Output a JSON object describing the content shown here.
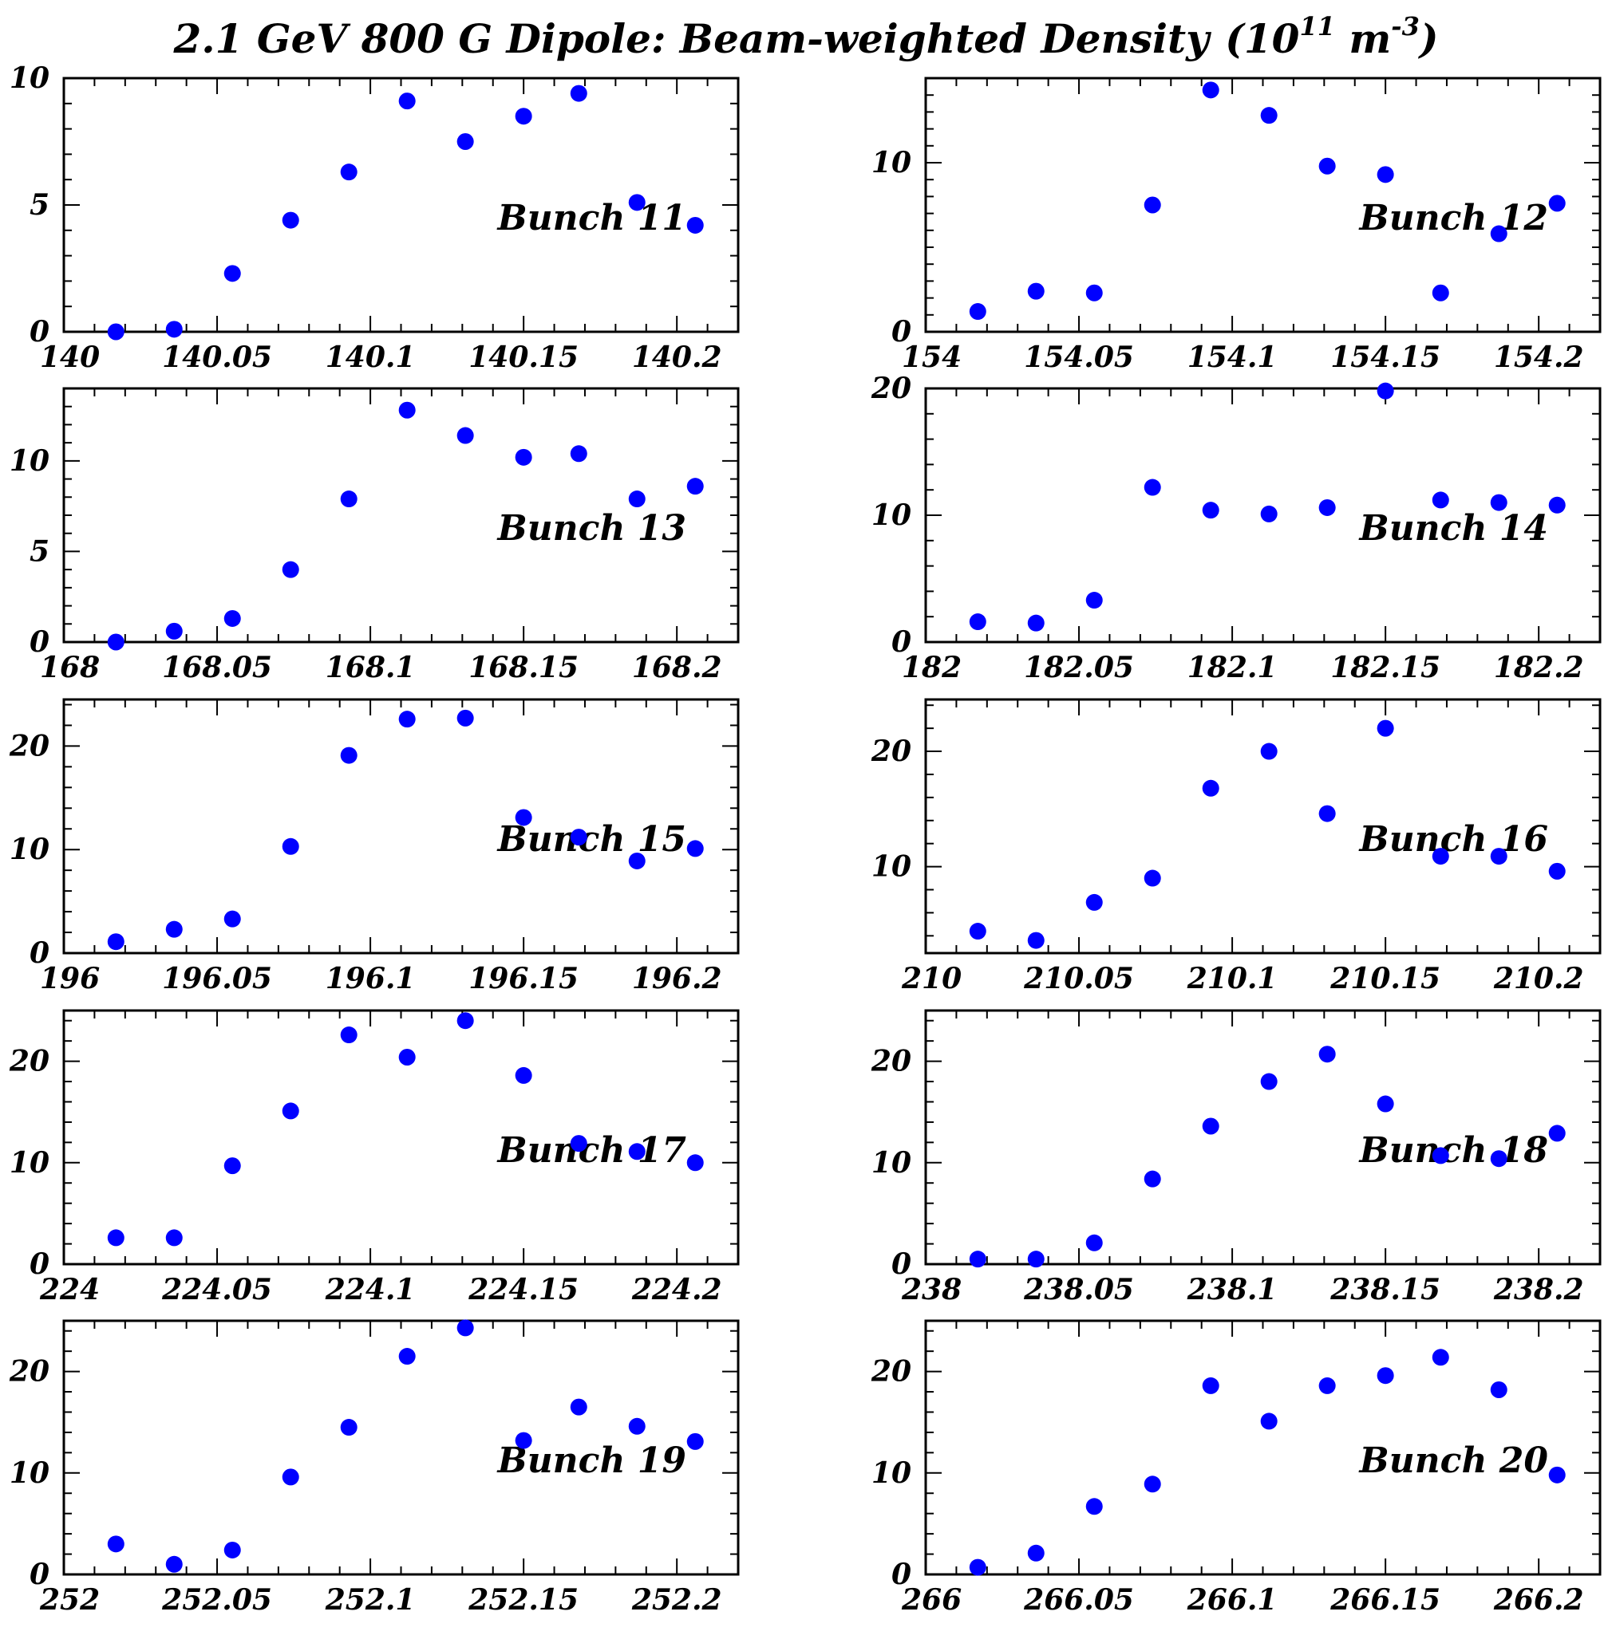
{
  "title": {
    "main": "2.1 GeV 800 G Dipole: Beam-weighted Density",
    "unit_open": "(10",
    "unit_exp1": "11",
    "unit_mid": " m",
    "unit_exp2": "-3",
    "unit_close": ")"
  },
  "colors": {
    "points": "#0000ff",
    "frame": "#000000",
    "background": "#ffffff"
  },
  "chart_data": [
    {
      "type": "scatter",
      "label": "Bunch 11",
      "xlim": [
        140,
        140.22
      ],
      "ylim": [
        0,
        10
      ],
      "xticks": [
        "140",
        "140.05",
        "140.1",
        "140.15",
        "140.2"
      ],
      "yticks": [
        "0",
        "5",
        "10"
      ],
      "x": [
        140.017,
        140.036,
        140.055,
        140.074,
        140.093,
        140.112,
        140.131,
        140.15,
        140.168,
        140.187,
        140.206
      ],
      "y": [
        0.0,
        0.1,
        2.3,
        4.4,
        6.3,
        9.1,
        7.5,
        8.5,
        9.4,
        5.1,
        4.2
      ]
    },
    {
      "type": "scatter",
      "label": "Bunch 12",
      "xlim": [
        154,
        154.22
      ],
      "ylim": [
        0,
        15
      ],
      "xticks": [
        "154",
        "154.05",
        "154.1",
        "154.15",
        "154.2"
      ],
      "yticks": [
        "0",
        "10"
      ],
      "x": [
        154.017,
        154.036,
        154.055,
        154.074,
        154.093,
        154.112,
        154.131,
        154.15,
        154.168,
        154.187,
        154.206
      ],
      "y": [
        1.2,
        2.4,
        2.3,
        7.5,
        14.3,
        12.8,
        9.8,
        9.3,
        2.3,
        5.8,
        7.6
      ]
    },
    {
      "type": "scatter",
      "label": "Bunch 13",
      "xlim": [
        168,
        168.22
      ],
      "ylim": [
        0,
        14
      ],
      "xticks": [
        "168",
        "168.05",
        "168.1",
        "168.15",
        "168.2"
      ],
      "yticks": [
        "0",
        "5",
        "10"
      ],
      "x": [
        168.017,
        168.036,
        168.055,
        168.074,
        168.093,
        168.112,
        168.131,
        168.15,
        168.168,
        168.187,
        168.206
      ],
      "y": [
        0.0,
        0.6,
        1.3,
        4.0,
        7.9,
        12.8,
        11.4,
        10.2,
        10.4,
        7.9,
        8.6
      ]
    },
    {
      "type": "scatter",
      "label": "Bunch 14",
      "xlim": [
        182,
        182.22
      ],
      "ylim": [
        0,
        20
      ],
      "xticks": [
        "182",
        "182.05",
        "182.1",
        "182.15",
        "182.2"
      ],
      "yticks": [
        "0",
        "10",
        "20"
      ],
      "x": [
        182.017,
        182.036,
        182.055,
        182.074,
        182.093,
        182.112,
        182.131,
        182.15,
        182.168,
        182.187,
        182.206
      ],
      "y": [
        1.6,
        1.5,
        3.3,
        12.2,
        10.4,
        10.1,
        10.6,
        19.8,
        11.2,
        11.0,
        10.8
      ]
    },
    {
      "type": "scatter",
      "label": "Bunch 15",
      "xlim": [
        196,
        196.22
      ],
      "ylim": [
        0,
        24.5
      ],
      "xticks": [
        "196",
        "196.05",
        "196.1",
        "196.15",
        "196.2"
      ],
      "yticks": [
        "0",
        "10",
        "20"
      ],
      "x": [
        196.017,
        196.036,
        196.055,
        196.074,
        196.093,
        196.112,
        196.131,
        196.15,
        196.168,
        196.187,
        196.206
      ],
      "y": [
        1.1,
        2.3,
        3.3,
        10.3,
        19.1,
        22.6,
        22.7,
        13.1,
        11.2,
        8.9,
        10.1
      ]
    },
    {
      "type": "scatter",
      "label": "Bunch 16",
      "xlim": [
        210,
        210.22
      ],
      "ylim": [
        2.5,
        24.5
      ],
      "xticks": [
        "210",
        "210.05",
        "210.1",
        "210.15",
        "210.2"
      ],
      "yticks": [
        "10",
        "20"
      ],
      "x": [
        210.017,
        210.036,
        210.055,
        210.074,
        210.093,
        210.112,
        210.131,
        210.15,
        210.168,
        210.187,
        210.206
      ],
      "y": [
        4.4,
        3.6,
        6.9,
        9.0,
        16.8,
        20.0,
        14.6,
        22.0,
        10.9,
        10.9,
        9.6
      ]
    },
    {
      "type": "scatter",
      "label": "Bunch 17",
      "xlim": [
        224,
        224.22
      ],
      "ylim": [
        0,
        25
      ],
      "xticks": [
        "224",
        "224.05",
        "224.1",
        "224.15",
        "224.2"
      ],
      "yticks": [
        "0",
        "10",
        "20"
      ],
      "x": [
        224.017,
        224.036,
        224.055,
        224.074,
        224.093,
        224.112,
        224.131,
        224.15,
        224.168,
        224.187,
        224.206
      ],
      "y": [
        2.6,
        2.6,
        9.7,
        15.1,
        22.6,
        20.4,
        24.0,
        18.6,
        11.9,
        11.1,
        10.0
      ]
    },
    {
      "type": "scatter",
      "label": "Bunch 18",
      "xlim": [
        238,
        238.22
      ],
      "ylim": [
        0,
        25
      ],
      "xticks": [
        "238",
        "238.05",
        "238.1",
        "238.15",
        "238.2"
      ],
      "yticks": [
        "0",
        "10",
        "20"
      ],
      "x": [
        238.017,
        238.036,
        238.055,
        238.074,
        238.093,
        238.112,
        238.131,
        238.15,
        238.168,
        238.187,
        238.206
      ],
      "y": [
        0.5,
        0.5,
        2.1,
        8.4,
        13.6,
        18.0,
        20.7,
        15.8,
        10.7,
        10.4,
        12.9
      ]
    },
    {
      "type": "scatter",
      "label": "Bunch 19",
      "xlim": [
        252,
        252.22
      ],
      "ylim": [
        0,
        25
      ],
      "xticks": [
        "252",
        "252.05",
        "252.1",
        "252.15",
        "252.2"
      ],
      "yticks": [
        "0",
        "10",
        "20"
      ],
      "x": [
        252.017,
        252.036,
        252.055,
        252.074,
        252.093,
        252.112,
        252.131,
        252.15,
        252.168,
        252.187,
        252.206
      ],
      "y": [
        3.0,
        1.0,
        2.4,
        9.6,
        14.5,
        21.5,
        24.3,
        13.2,
        16.5,
        14.6,
        13.1
      ]
    },
    {
      "type": "scatter",
      "label": "Bunch 20",
      "xlim": [
        266,
        266.22
      ],
      "ylim": [
        0,
        25
      ],
      "xticks": [
        "266",
        "266.05",
        "266.1",
        "266.15",
        "266.2"
      ],
      "yticks": [
        "0",
        "10",
        "20"
      ],
      "x": [
        266.017,
        266.036,
        266.055,
        266.074,
        266.093,
        266.112,
        266.131,
        266.15,
        266.168,
        266.187,
        266.206
      ],
      "y": [
        0.7,
        2.1,
        6.7,
        8.9,
        18.6,
        15.1,
        18.6,
        19.6,
        21.4,
        18.2,
        9.8
      ]
    }
  ]
}
